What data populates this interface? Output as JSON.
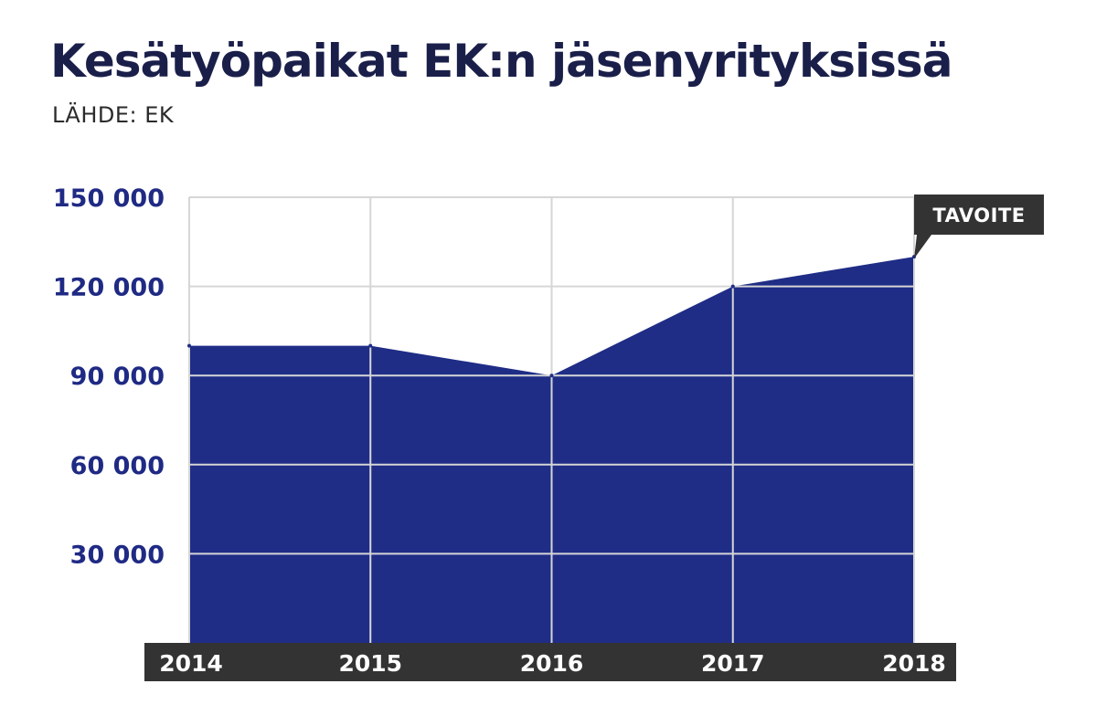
{
  "chart_data": {
    "type": "area",
    "title": "Kesätyöpaikat EK:n jäsenyrityksissä",
    "subtitle": "LÄHDE: EK",
    "xlabel": "",
    "ylabel": "",
    "categories": [
      "2014",
      "2015",
      "2016",
      "2017",
      "2018"
    ],
    "values": [
      100000,
      100000,
      90000,
      120000,
      130000
    ],
    "ylim": [
      0,
      150000
    ],
    "y_ticks": [
      30000,
      60000,
      90000,
      120000,
      150000
    ],
    "y_tick_labels": [
      "30 000",
      "60 000",
      "90 000",
      "120 000",
      "150 000"
    ],
    "grid": true,
    "annotation": {
      "text": "TAVOITE",
      "category": "2018"
    },
    "colors": {
      "area": "#1f2d86",
      "axis_bar": "#333333",
      "tick_text": "#1f2a84",
      "grid": "#d6d6d6"
    }
  }
}
